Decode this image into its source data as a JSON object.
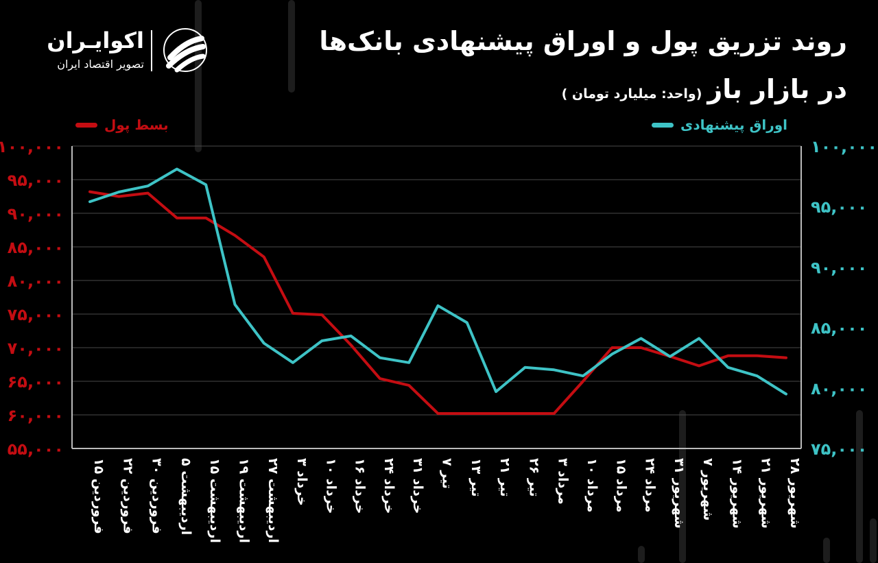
{
  "title_line1": "روند تزریق پول و اوراق پیشنهادی بانک‌ها",
  "title_line2": "در بازار باز",
  "unit_label": "(واحد: میلیارد تومان )",
  "brand": {
    "name": "اکوایـران",
    "tagline": "تصویر اقتصاد ایران"
  },
  "colors": {
    "red": "#c40d12",
    "teal": "#3ec3c6",
    "background": "#000000",
    "grid": "#4a4a4a"
  },
  "chart_data": {
    "type": "line",
    "categories": [
      "۱۵ فروردین",
      "۲۲ فروردین",
      "۳۰ فروردین",
      "۵ اردیبهشت",
      "۱۵ اردیبهشت",
      "۱۹ اردیبهشت",
      "۲۷ اردیبهشت",
      "۳ خرداد",
      "۱۰ خرداد",
      "۱۶ خرداد",
      "۲۴ خرداد",
      "۳۱ خرداد",
      "۷ تیر",
      "۱۳ تیر",
      "۲۱ تیر",
      "۲۶ تیر",
      "۳ مرداد",
      "۱۰ مرداد",
      "۱۵ مرداد",
      "۲۴ مرداد",
      "۳۱ شهریور",
      "۷ شهریور",
      "۱۴ شهریور",
      "۲۱ شهریور",
      "۲۸ شهریور"
    ],
    "left_axis": {
      "ylim": [
        55000,
        100000
      ],
      "ticks": [
        "۵۵,۰۰۰",
        "۶۰,۰۰۰",
        "۶۵,۰۰۰",
        "۷۰,۰۰۰",
        "۷۵,۰۰۰",
        "۸۰,۰۰۰",
        "۸۵,۰۰۰",
        "۹۰,۰۰۰",
        "۹۵,۰۰۰",
        "۱۰۰,۰۰۰"
      ]
    },
    "right_axis": {
      "ylim": [
        75000,
        100000
      ],
      "ticks": [
        "۷۵,۰۰۰",
        "۸۰,۰۰۰",
        "۸۵,۰۰۰",
        "۹۰,۰۰۰",
        "۹۵,۰۰۰",
        "۱۰۰,۰۰۰"
      ]
    },
    "series": [
      {
        "name": "بسط پول",
        "axis": "left",
        "color": "#c40d12",
        "values": [
          93200,
          92500,
          93000,
          89300,
          89300,
          86700,
          83500,
          75100,
          74900,
          70400,
          65400,
          64400,
          60200,
          60200,
          60200,
          60200,
          60200,
          65000,
          70000,
          70000,
          68700,
          67300,
          68800,
          68800,
          68500
        ]
      },
      {
        "name": "اوراق پیشنهادی",
        "axis": "right",
        "color": "#3ec3c6",
        "values": [
          95400,
          96200,
          96700,
          98100,
          96800,
          86900,
          83700,
          82100,
          83900,
          84300,
          82500,
          82100,
          86800,
          85400,
          79700,
          81700,
          81500,
          81000,
          82800,
          84100,
          82600,
          84100,
          81700,
          81000,
          79500
        ]
      }
    ],
    "legend_position": "top",
    "grid": true
  }
}
